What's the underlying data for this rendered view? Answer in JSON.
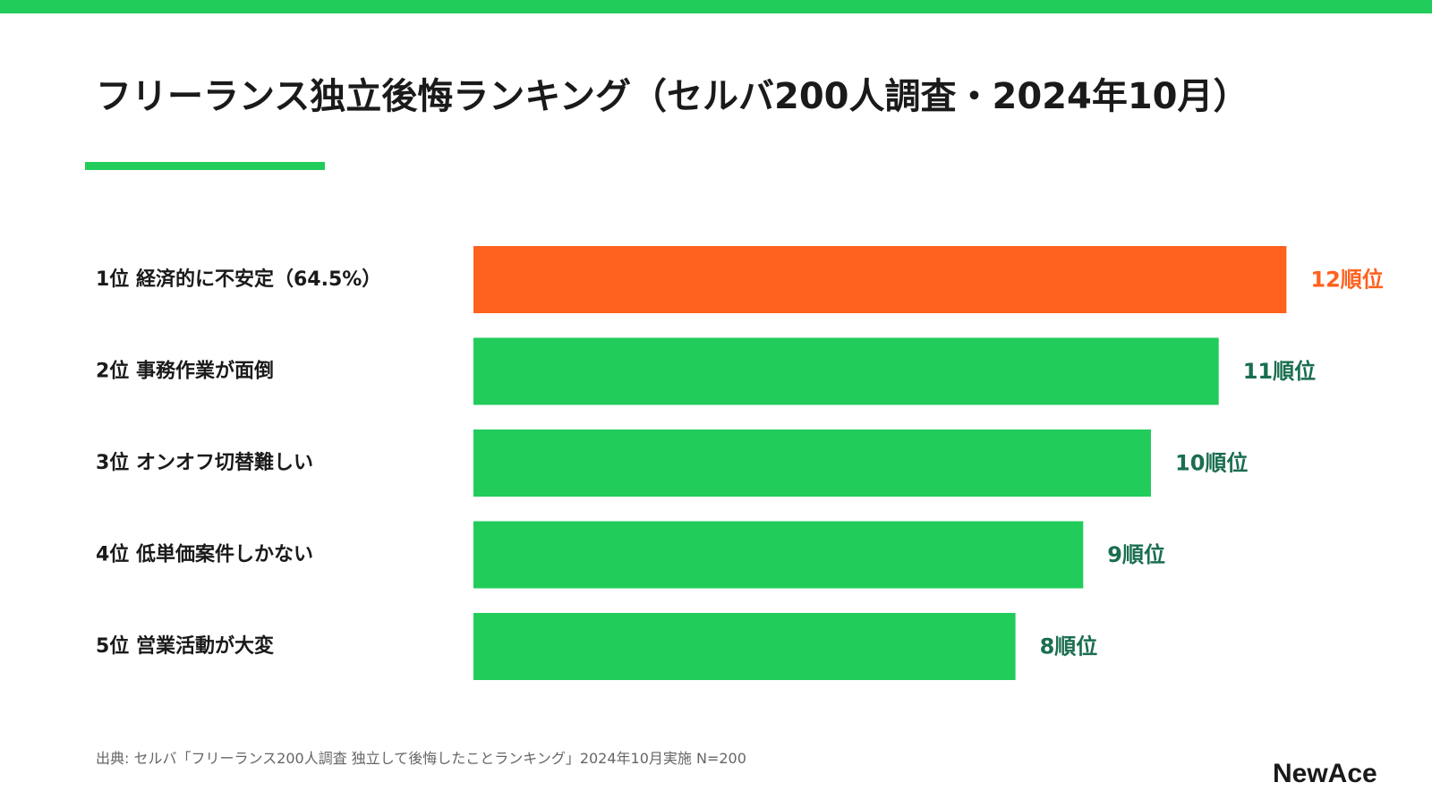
{
  "title": "フリーランス独立後悔ランキング（セルバ200人調査・2024年10月）",
  "source": "出典: セルバ「フリーランス200人調査 独立して後悔したことランキング」2024年10月実施 N=200",
  "logo": {
    "text": "NewAce"
  },
  "colors": {
    "accent_green": "#22cc5b",
    "highlight_orange": "#ff611e",
    "value_green": "#1a6e4f",
    "text": "#1a1a1a",
    "muted": "#666666"
  },
  "chart_data": {
    "type": "bar",
    "orientation": "horizontal",
    "categories": [
      "1位 経済的に不安定（64.5%）",
      "2位 事務作業が面倒",
      "3位 オンオフ切替難しい",
      "4位 低単価案件しかない",
      "5位 営業活動が大変"
    ],
    "values": [
      12,
      11,
      10,
      9,
      8
    ],
    "value_labels": [
      "12順位",
      "11順位",
      "10順位",
      "9順位",
      "8順位"
    ],
    "highlight_index": 0,
    "xlim": [
      0,
      12
    ],
    "grid": false,
    "legend": "none",
    "title": "",
    "xlabel": "",
    "ylabel": ""
  }
}
